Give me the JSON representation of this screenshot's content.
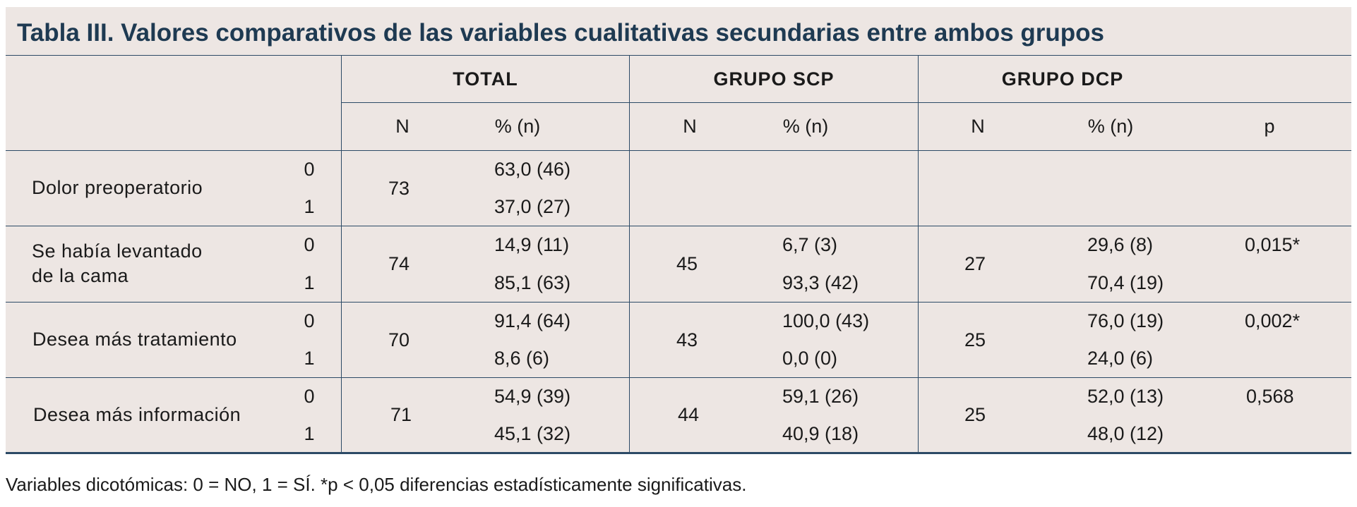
{
  "title": "Tabla III. Valores comparativos de las variables cualitativas secundarias entre ambos grupos",
  "group_headers": [
    "TOTAL",
    "GRUPO SCP",
    "GRUPO DCP"
  ],
  "sub_headers": [
    "N",
    "% (n)",
    "N",
    "% (n)",
    "N",
    "% (n)",
    "p"
  ],
  "rows": [
    {
      "label": "Dolor preoperatorio",
      "codes": [
        "0",
        "1"
      ],
      "total_n": "73",
      "total_pct": [
        "63,0 (46)",
        "37,0 (27)"
      ],
      "scp_n": "",
      "scp_pct": [
        "",
        ""
      ],
      "dcp_n": "",
      "dcp_pct": [
        "",
        ""
      ],
      "p": ""
    },
    {
      "label": "Se había levantado de la cama",
      "label_lines": [
        "Se había levantado",
        "de la cama"
      ],
      "codes": [
        "0",
        "1"
      ],
      "total_n": "74",
      "total_pct": [
        "14,9 (11)",
        "85,1 (63)"
      ],
      "scp_n": "45",
      "scp_pct": [
        "6,7 (3)",
        "93,3 (42)"
      ],
      "dcp_n": "27",
      "dcp_pct": [
        "29,6 (8)",
        "70,4 (19)"
      ],
      "p": "0,015*"
    },
    {
      "label": "Desea más tratamiento",
      "codes": [
        "0",
        "1"
      ],
      "total_n": "70",
      "total_pct": [
        "91,4 (64)",
        "8,6 (6)"
      ],
      "scp_n": "43",
      "scp_pct": [
        "100,0 (43)",
        "0,0 (0)"
      ],
      "dcp_n": "25",
      "dcp_pct": [
        "76,0 (19)",
        "24,0 (6)"
      ],
      "p": "0,002*"
    },
    {
      "label": "Desea más información",
      "codes": [
        "0",
        "1"
      ],
      "total_n": "71",
      "total_pct": [
        "54,9 (39)",
        "45,1 (32)"
      ],
      "scp_n": "44",
      "scp_pct": [
        "59,1 (26)",
        "40,9 (18)"
      ],
      "dcp_n": "25",
      "dcp_pct": [
        "52,0 (13)",
        "48,0 (12)"
      ],
      "p": "0,568"
    }
  ],
  "footnote": "Variables dicotómicas: 0 = NO, 1 = SÍ. *p < 0,05 diferencias estadísticamente significativas."
}
